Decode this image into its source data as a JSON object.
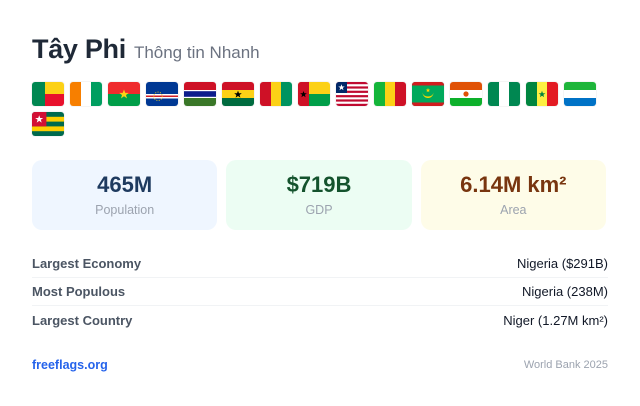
{
  "header": {
    "title": "Tây Phi",
    "subtitle": "Thông tin Nhanh"
  },
  "flags": [
    {
      "name": "benin-flag",
      "colors": [
        "#008751",
        "#fcd116",
        "#e8112d"
      ]
    },
    {
      "name": "cote-divoire-flag",
      "colors": [
        "#f77f00",
        "#ffffff",
        "#009e60"
      ]
    },
    {
      "name": "burkina-faso-flag",
      "colors": [
        "#ef2b2d",
        "#009e49",
        "#fcd116"
      ]
    },
    {
      "name": "cape-verde-flag",
      "colors": [
        "#003893",
        "#ffffff",
        "#cf2027",
        "#f7d116"
      ]
    },
    {
      "name": "gambia-flag",
      "colors": [
        "#ce1126",
        "#0c1c8c",
        "#3a7728",
        "#ffffff"
      ]
    },
    {
      "name": "ghana-flag",
      "colors": [
        "#ce1126",
        "#fcd116",
        "#006b3f",
        "#000000"
      ]
    },
    {
      "name": "guinea-flag",
      "colors": [
        "#ce1126",
        "#fcd116",
        "#009460"
      ]
    },
    {
      "name": "guinea-bissau-flag",
      "colors": [
        "#ce1126",
        "#fcd116",
        "#009e49",
        "#000000"
      ]
    },
    {
      "name": "liberia-flag",
      "colors": [
        "#bf0a30",
        "#ffffff",
        "#002868"
      ]
    },
    {
      "name": "mali-flag",
      "colors": [
        "#14b53a",
        "#fcd116",
        "#ce1126"
      ]
    },
    {
      "name": "mauritania-flag",
      "colors": [
        "#00a95c",
        "#ffd700",
        "#d01c1f"
      ]
    },
    {
      "name": "niger-flag",
      "colors": [
        "#e05206",
        "#ffffff",
        "#0db02b"
      ]
    },
    {
      "name": "nigeria-flag",
      "colors": [
        "#008751",
        "#ffffff"
      ]
    },
    {
      "name": "senegal-flag",
      "colors": [
        "#00853f",
        "#fdef42",
        "#e31b23"
      ]
    },
    {
      "name": "sierra-leone-flag",
      "colors": [
        "#1eb53a",
        "#ffffff",
        "#0072c6"
      ]
    },
    {
      "name": "togo-flag",
      "colors": [
        "#006a4e",
        "#ffce00",
        "#d21034",
        "#ffffff"
      ]
    }
  ],
  "stats": {
    "population": {
      "value": "465M",
      "label": "Population"
    },
    "gdp": {
      "value": "$719B",
      "label": "GDP"
    },
    "area": {
      "value": "6.14M km²",
      "label": "Area"
    }
  },
  "facts": [
    {
      "label": "Largest Economy",
      "value": "Nigeria ($291B)"
    },
    {
      "label": "Most Populous",
      "value": "Nigeria (238M)"
    },
    {
      "label": "Largest Country",
      "value": "Niger (1.27M km²)"
    }
  ],
  "footer": {
    "link": "freeflags.org",
    "source": "World Bank 2025"
  },
  "colors": {
    "accent": "#2563eb",
    "population_bg": "#eff6ff",
    "gdp_bg": "#ecfdf3",
    "area_bg": "#fefce8"
  }
}
